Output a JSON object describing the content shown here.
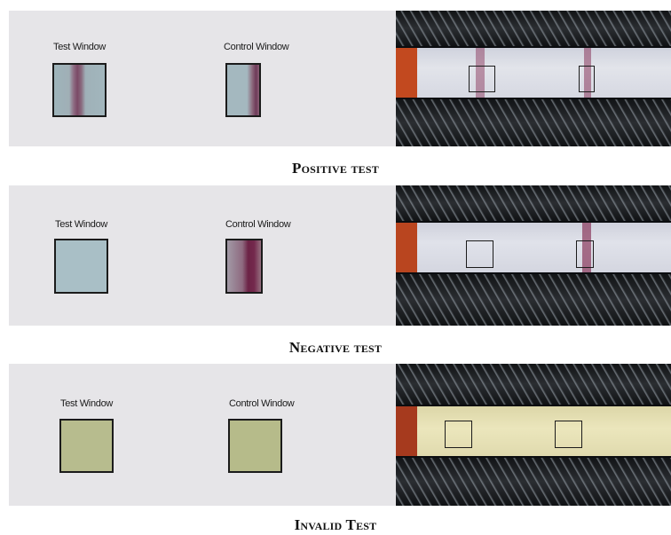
{
  "rows": [
    {
      "caption": "Positive test",
      "test_window_label": "Test Window",
      "control_window_label": "Control Window",
      "result": "positive"
    },
    {
      "caption": "Negative test",
      "test_window_label": "Test Window",
      "control_window_label": "Control Window",
      "result": "negative"
    },
    {
      "caption": "Invalid Test",
      "test_window_label": "Test Window",
      "control_window_label": "Control Window",
      "result": "invalid"
    }
  ],
  "colors": {
    "panel_bg": "#e6e5e8",
    "window_bluegray": "#a9bfc6",
    "window_greenish": "#b7bc8e",
    "band_red": "#7a1f3a",
    "strip_white": "#dcdfe7",
    "strip_yellow": "#e9e4b6",
    "sample_pad_orange": "#c2491f"
  }
}
